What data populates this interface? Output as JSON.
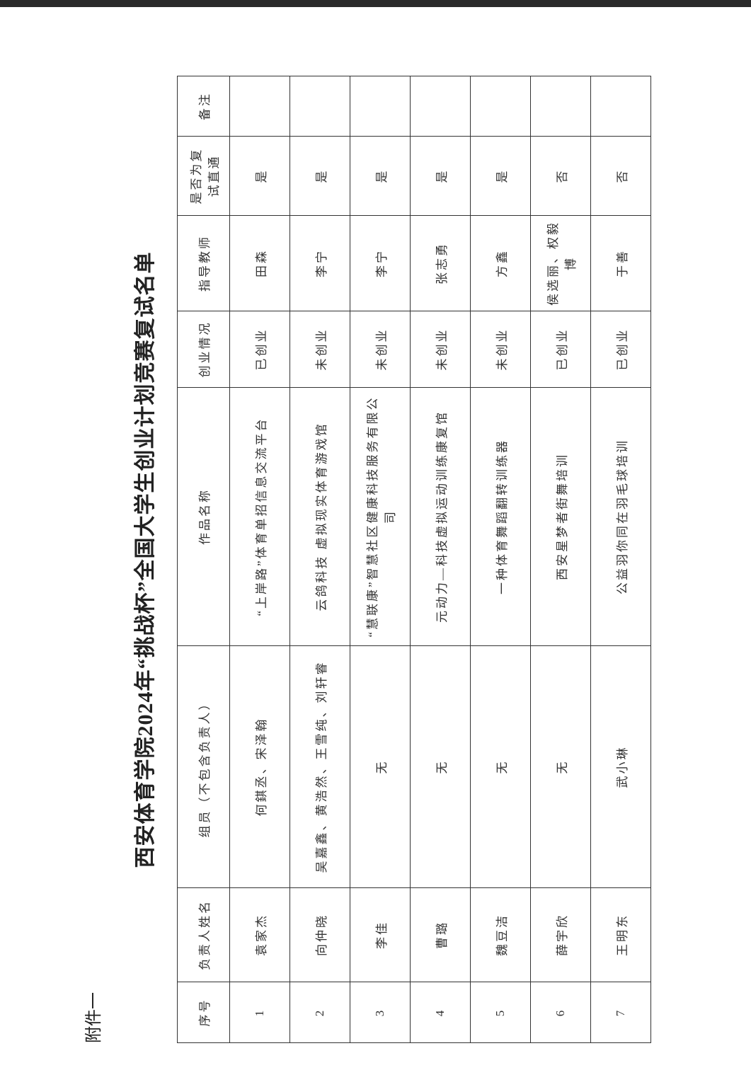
{
  "attachment_label": "附件一",
  "title": "西安体育学院2024年“挑战杯”全国大学生创业计划竞赛复试名单",
  "headers": [
    "序号",
    "负责人姓名",
    "组员（不包含负责人）",
    "作品名称",
    "创业情况",
    "指导教师",
    "是否为复试直通",
    "备注"
  ],
  "rows": [
    [
      "1",
      "袁家杰",
      "何錤丞、宋泽翰",
      "“上岸路”体育单招信息交流平台",
      "已创业",
      "田森",
      "是",
      ""
    ],
    [
      "2",
      "向仲晓",
      "吴嘉鑫、黄浩然、王雪纯、刘轩睿",
      "云鸽科技 虚拟现实体育游戏馆",
      "未创业",
      "李宁",
      "是",
      ""
    ],
    [
      "3",
      "李佳",
      "无",
      "“慧联康”智慧社区健康科技服务有限公司",
      "未创业",
      "李宁",
      "是",
      ""
    ],
    [
      "4",
      "曹璐",
      "无",
      "元动力—科技虚拟运动训练康复馆",
      "未创业",
      "张志勇",
      "是",
      ""
    ],
    [
      "5",
      "魏豆洁",
      "无",
      "一种体育舞蹈翻转训练器",
      "未创业",
      "方鑫",
      "是",
      ""
    ],
    [
      "6",
      "薛宇欣",
      "无",
      "西安星梦者街舞培训",
      "已创业",
      "侯选丽、权毅博",
      "否",
      ""
    ],
    [
      "7",
      "王明东",
      "武小琳",
      "公益羽你同在羽毛球培训",
      "已创业",
      "于善",
      "否",
      ""
    ]
  ]
}
